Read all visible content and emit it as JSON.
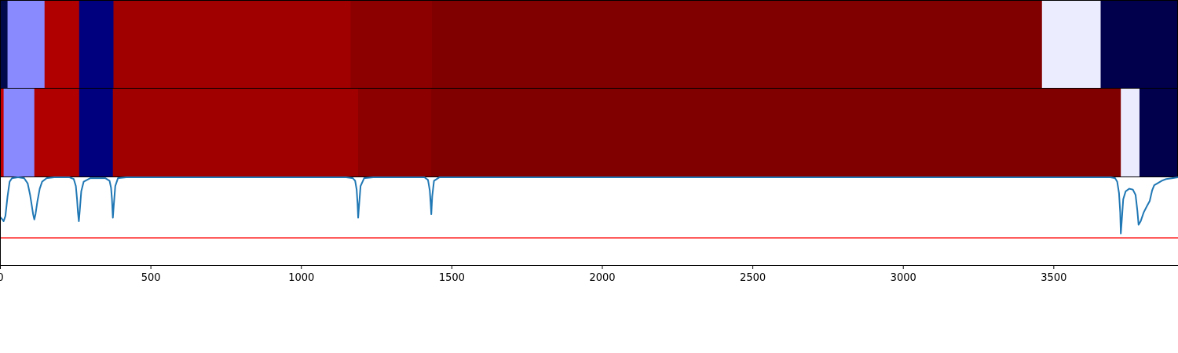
{
  "chart_data": [
    {
      "type": "heatmap",
      "panel": "top-band",
      "x_unit": "position",
      "segments": [
        {
          "start": 0,
          "end": 25,
          "color": "#000a4a"
        },
        {
          "start": 25,
          "end": 148,
          "color": "#8a8aff"
        },
        {
          "start": 148,
          "end": 263,
          "color": "#b00000"
        },
        {
          "start": 263,
          "end": 377,
          "color": "#00007e"
        },
        {
          "start": 377,
          "end": 1165,
          "color": "#a00000"
        },
        {
          "start": 1165,
          "end": 1435,
          "color": "#8c0000"
        },
        {
          "start": 1435,
          "end": 3462,
          "color": "#800000"
        },
        {
          "start": 3462,
          "end": 3657,
          "color": "#ececff"
        },
        {
          "start": 3657,
          "end": 3914,
          "color": "#00004c"
        }
      ]
    },
    {
      "type": "heatmap",
      "panel": "middle-band",
      "x_unit": "position",
      "segments": [
        {
          "start": 0,
          "end": 12,
          "color": "#c40000"
        },
        {
          "start": 12,
          "end": 114,
          "color": "#8a8aff"
        },
        {
          "start": 114,
          "end": 263,
          "color": "#b00000"
        },
        {
          "start": 263,
          "end": 375,
          "color": "#00007e"
        },
        {
          "start": 375,
          "end": 1190,
          "color": "#a00000"
        },
        {
          "start": 1190,
          "end": 1433,
          "color": "#8c0000"
        },
        {
          "start": 1433,
          "end": 3724,
          "color": "#800000"
        },
        {
          "start": 3724,
          "end": 3786,
          "color": "#ececff"
        },
        {
          "start": 3786,
          "end": 3914,
          "color": "#00004c"
        }
      ]
    },
    {
      "type": "line",
      "panel": "bottom-plot",
      "xlim": [
        0,
        3914
      ],
      "ylim": [
        0,
        1
      ],
      "x_ticks": [
        0,
        500,
        1000,
        1500,
        2000,
        2500,
        3000,
        3500
      ],
      "x_tick_labels": [
        "0",
        "500",
        "1000",
        "1500",
        "2000",
        "2500",
        "3000",
        "3500"
      ],
      "series": [
        {
          "color": "#1f77b4",
          "points": [
            [
              0,
              0.55
            ],
            [
              8,
              0.52
            ],
            [
              12,
              0.5
            ],
            [
              18,
              0.56
            ],
            [
              25,
              0.78
            ],
            [
              32,
              0.95
            ],
            [
              40,
              0.99
            ],
            [
              60,
              1.0
            ],
            [
              80,
              0.99
            ],
            [
              92,
              0.93
            ],
            [
              100,
              0.8
            ],
            [
              106,
              0.67
            ],
            [
              110,
              0.58
            ],
            [
              114,
              0.52
            ],
            [
              118,
              0.58
            ],
            [
              124,
              0.72
            ],
            [
              132,
              0.87
            ],
            [
              140,
              0.95
            ],
            [
              155,
              0.99
            ],
            [
              180,
              1.0
            ],
            [
              230,
              1.0
            ],
            [
              245,
              0.98
            ],
            [
              252,
              0.9
            ],
            [
              256,
              0.75
            ],
            [
              259,
              0.6
            ],
            [
              262,
              0.5
            ],
            [
              265,
              0.62
            ],
            [
              270,
              0.84
            ],
            [
              278,
              0.95
            ],
            [
              300,
              0.99
            ],
            [
              350,
              0.99
            ],
            [
              364,
              0.96
            ],
            [
              369,
              0.88
            ],
            [
              372,
              0.75
            ],
            [
              375,
              0.54
            ],
            [
              378,
              0.68
            ],
            [
              383,
              0.9
            ],
            [
              392,
              0.99
            ],
            [
              420,
              1.0
            ],
            [
              1150,
              1.0
            ],
            [
              1172,
              0.99
            ],
            [
              1180,
              0.96
            ],
            [
              1185,
              0.86
            ],
            [
              1188,
              0.7
            ],
            [
              1190,
              0.54
            ],
            [
              1193,
              0.68
            ],
            [
              1198,
              0.9
            ],
            [
              1210,
              0.99
            ],
            [
              1240,
              1.0
            ],
            [
              1410,
              1.0
            ],
            [
              1422,
              0.97
            ],
            [
              1428,
              0.85
            ],
            [
              1431,
              0.7
            ],
            [
              1433,
              0.58
            ],
            [
              1436,
              0.78
            ],
            [
              1442,
              0.96
            ],
            [
              1460,
              1.0
            ],
            [
              3690,
              1.0
            ],
            [
              3705,
              0.99
            ],
            [
              3712,
              0.95
            ],
            [
              3718,
              0.82
            ],
            [
              3722,
              0.6
            ],
            [
              3724,
              0.36
            ],
            [
              3727,
              0.5
            ],
            [
              3732,
              0.75
            ],
            [
              3740,
              0.84
            ],
            [
              3752,
              0.87
            ],
            [
              3764,
              0.86
            ],
            [
              3773,
              0.8
            ],
            [
              3779,
              0.62
            ],
            [
              3783,
              0.46
            ],
            [
              3790,
              0.5
            ],
            [
              3800,
              0.6
            ],
            [
              3812,
              0.68
            ],
            [
              3820,
              0.73
            ],
            [
              3828,
              0.85
            ],
            [
              3835,
              0.91
            ],
            [
              3845,
              0.93
            ],
            [
              3860,
              0.96
            ],
            [
              3875,
              0.98
            ],
            [
              3895,
              0.99
            ],
            [
              3914,
              1.0
            ]
          ]
        }
      ],
      "reference_lines": [
        {
          "orientation": "horizontal",
          "y": 0.31,
          "color": "#ff0000"
        }
      ],
      "grid": false,
      "legend": "none"
    }
  ]
}
